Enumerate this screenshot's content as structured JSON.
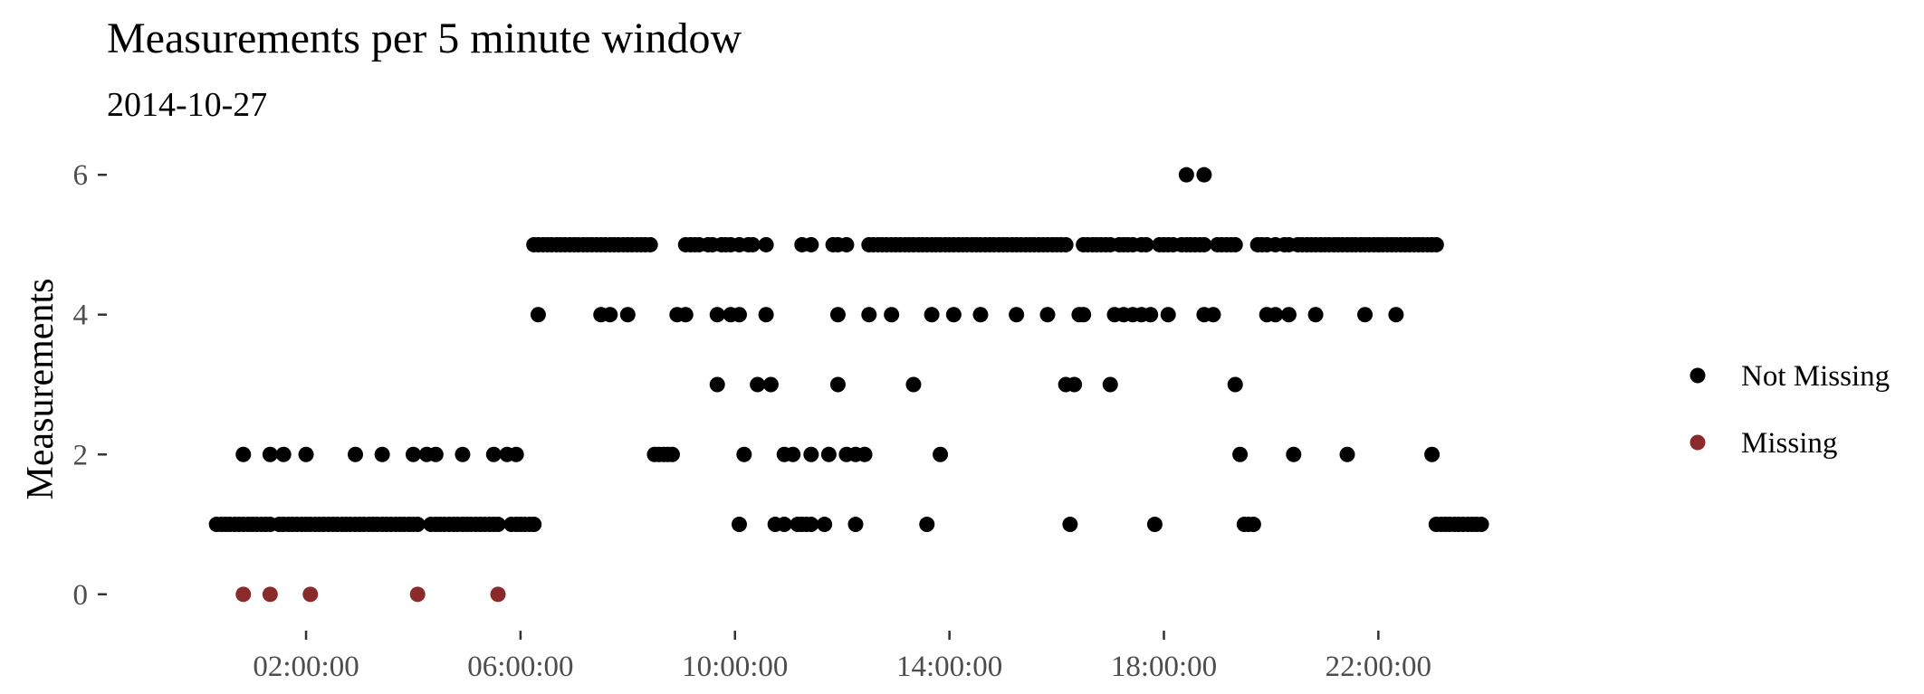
{
  "chart_data": {
    "type": "scatter",
    "title": "Measurements per 5 minute window",
    "subtitle": "2014-10-27",
    "xlabel": "",
    "ylabel": "Measurements",
    "x_unit": "hours",
    "xlim": [
      -0.5,
      25.0
    ],
    "ylim": [
      -0.3,
      6.3
    ],
    "x_ticks": [
      2,
      6,
      10,
      14,
      18,
      22
    ],
    "x_tick_labels": [
      "02:00:00",
      "06:00:00",
      "10:00:00",
      "14:00:00",
      "18:00:00",
      "22:00:00"
    ],
    "y_ticks": [
      0,
      2,
      4,
      6
    ],
    "y_tick_labels": [
      "0",
      "2",
      "4",
      "6"
    ],
    "grid": false,
    "legend_position": "right",
    "series": [
      {
        "name": "Not Missing",
        "color": "#000000",
        "points": [
          [
            0.33,
            1
          ],
          [
            0.42,
            1
          ],
          [
            0.5,
            1
          ],
          [
            0.58,
            1
          ],
          [
            0.67,
            1
          ],
          [
            0.75,
            1
          ],
          [
            0.83,
            1
          ],
          [
            0.92,
            1
          ],
          [
            1.0,
            1
          ],
          [
            1.08,
            1
          ],
          [
            1.17,
            1
          ],
          [
            1.25,
            1
          ],
          [
            1.33,
            1
          ],
          [
            1.5,
            1
          ],
          [
            1.58,
            1
          ],
          [
            1.67,
            1
          ],
          [
            1.75,
            1
          ],
          [
            1.83,
            1
          ],
          [
            1.92,
            1
          ],
          [
            2.0,
            1
          ],
          [
            2.08,
            1
          ],
          [
            2.17,
            1
          ],
          [
            2.25,
            1
          ],
          [
            2.33,
            1
          ],
          [
            2.42,
            1
          ],
          [
            2.5,
            1
          ],
          [
            2.58,
            1
          ],
          [
            2.67,
            1
          ],
          [
            2.75,
            1
          ],
          [
            2.83,
            1
          ],
          [
            2.92,
            1
          ],
          [
            3.0,
            1
          ],
          [
            3.08,
            1
          ],
          [
            3.17,
            1
          ],
          [
            3.25,
            1
          ],
          [
            3.33,
            1
          ],
          [
            3.42,
            1
          ],
          [
            3.5,
            1
          ],
          [
            3.58,
            1
          ],
          [
            3.67,
            1
          ],
          [
            3.75,
            1
          ],
          [
            3.83,
            1
          ],
          [
            3.92,
            1
          ],
          [
            4.0,
            1
          ],
          [
            4.08,
            1
          ],
          [
            4.33,
            1
          ],
          [
            4.42,
            1
          ],
          [
            4.5,
            1
          ],
          [
            4.58,
            1
          ],
          [
            4.67,
            1
          ],
          [
            4.75,
            1
          ],
          [
            4.83,
            1
          ],
          [
            4.92,
            1
          ],
          [
            5.0,
            1
          ],
          [
            5.08,
            1
          ],
          [
            5.17,
            1
          ],
          [
            5.25,
            1
          ],
          [
            5.33,
            1
          ],
          [
            5.42,
            1
          ],
          [
            5.5,
            1
          ],
          [
            5.58,
            1
          ],
          [
            5.83,
            1
          ],
          [
            5.92,
            1
          ],
          [
            6.0,
            1
          ],
          [
            6.08,
            1
          ],
          [
            6.17,
            1
          ],
          [
            6.25,
            1
          ],
          [
            0.83,
            2
          ],
          [
            1.33,
            2
          ],
          [
            1.58,
            2
          ],
          [
            2.0,
            2
          ],
          [
            2.92,
            2
          ],
          [
            3.42,
            2
          ],
          [
            4.0,
            2
          ],
          [
            4.25,
            2
          ],
          [
            4.42,
            2
          ],
          [
            4.92,
            2
          ],
          [
            5.5,
            2
          ],
          [
            5.75,
            2
          ],
          [
            5.92,
            2
          ],
          [
            6.25,
            5
          ],
          [
            6.33,
            5
          ],
          [
            6.42,
            5
          ],
          [
            6.5,
            5
          ],
          [
            6.58,
            5
          ],
          [
            6.67,
            5
          ],
          [
            6.75,
            5
          ],
          [
            6.83,
            5
          ],
          [
            6.92,
            5
          ],
          [
            7.0,
            5
          ],
          [
            7.08,
            5
          ],
          [
            7.17,
            5
          ],
          [
            7.25,
            5
          ],
          [
            7.33,
            5
          ],
          [
            7.42,
            5
          ],
          [
            7.5,
            5
          ],
          [
            7.58,
            5
          ],
          [
            7.67,
            5
          ],
          [
            7.75,
            5
          ],
          [
            7.83,
            5
          ],
          [
            7.92,
            5
          ],
          [
            8.0,
            5
          ],
          [
            8.08,
            5
          ],
          [
            8.17,
            5
          ],
          [
            8.25,
            5
          ],
          [
            8.33,
            5
          ],
          [
            8.42,
            5
          ],
          [
            9.08,
            5
          ],
          [
            9.17,
            5
          ],
          [
            9.25,
            5
          ],
          [
            9.33,
            5
          ],
          [
            9.5,
            5
          ],
          [
            9.58,
            5
          ],
          [
            9.75,
            5
          ],
          [
            9.83,
            5
          ],
          [
            9.92,
            5
          ],
          [
            10.08,
            5
          ],
          [
            10.25,
            5
          ],
          [
            10.33,
            5
          ],
          [
            10.58,
            5
          ],
          [
            11.25,
            5
          ],
          [
            11.42,
            5
          ],
          [
            11.83,
            5
          ],
          [
            11.92,
            5
          ],
          [
            12.08,
            5
          ],
          [
            12.5,
            5
          ],
          [
            12.58,
            5
          ],
          [
            12.67,
            5
          ],
          [
            12.75,
            5
          ],
          [
            12.83,
            5
          ],
          [
            12.92,
            5
          ],
          [
            13.0,
            5
          ],
          [
            13.08,
            5
          ],
          [
            13.17,
            5
          ],
          [
            13.25,
            5
          ],
          [
            13.33,
            5
          ],
          [
            13.42,
            5
          ],
          [
            13.5,
            5
          ],
          [
            13.58,
            5
          ],
          [
            13.67,
            5
          ],
          [
            13.75,
            5
          ],
          [
            13.83,
            5
          ],
          [
            13.92,
            5
          ],
          [
            14.0,
            5
          ],
          [
            14.08,
            5
          ],
          [
            14.17,
            5
          ],
          [
            14.25,
            5
          ],
          [
            14.33,
            5
          ],
          [
            14.42,
            5
          ],
          [
            14.5,
            5
          ],
          [
            14.58,
            5
          ],
          [
            14.67,
            5
          ],
          [
            14.75,
            5
          ],
          [
            14.83,
            5
          ],
          [
            14.92,
            5
          ],
          [
            15.0,
            5
          ],
          [
            15.08,
            5
          ],
          [
            15.17,
            5
          ],
          [
            15.25,
            5
          ],
          [
            15.33,
            5
          ],
          [
            15.42,
            5
          ],
          [
            15.5,
            5
          ],
          [
            15.58,
            5
          ],
          [
            15.67,
            5
          ],
          [
            15.75,
            5
          ],
          [
            15.83,
            5
          ],
          [
            15.92,
            5
          ],
          [
            16.0,
            5
          ],
          [
            16.08,
            5
          ],
          [
            16.17,
            5
          ],
          [
            16.5,
            5
          ],
          [
            16.58,
            5
          ],
          [
            16.67,
            5
          ],
          [
            16.75,
            5
          ],
          [
            16.83,
            5
          ],
          [
            16.92,
            5
          ],
          [
            17.0,
            5
          ],
          [
            17.17,
            5
          ],
          [
            17.25,
            5
          ],
          [
            17.33,
            5
          ],
          [
            17.42,
            5
          ],
          [
            17.58,
            5
          ],
          [
            17.67,
            5
          ],
          [
            17.92,
            5
          ],
          [
            18.0,
            5
          ],
          [
            18.08,
            5
          ],
          [
            18.17,
            5
          ],
          [
            18.33,
            5
          ],
          [
            18.42,
            5
          ],
          [
            18.5,
            5
          ],
          [
            18.58,
            5
          ],
          [
            18.67,
            5
          ],
          [
            18.75,
            5
          ],
          [
            19.0,
            5
          ],
          [
            19.08,
            5
          ],
          [
            19.17,
            5
          ],
          [
            19.25,
            5
          ],
          [
            19.33,
            5
          ],
          [
            19.75,
            5
          ],
          [
            19.83,
            5
          ],
          [
            19.92,
            5
          ],
          [
            20.08,
            5
          ],
          [
            20.25,
            5
          ],
          [
            20.33,
            5
          ],
          [
            20.5,
            5
          ],
          [
            20.58,
            5
          ],
          [
            20.67,
            5
          ],
          [
            20.75,
            5
          ],
          [
            20.83,
            5
          ],
          [
            20.92,
            5
          ],
          [
            21.0,
            5
          ],
          [
            21.08,
            5
          ],
          [
            21.17,
            5
          ],
          [
            21.25,
            5
          ],
          [
            21.33,
            5
          ],
          [
            21.42,
            5
          ],
          [
            21.5,
            5
          ],
          [
            21.58,
            5
          ],
          [
            21.67,
            5
          ],
          [
            21.75,
            5
          ],
          [
            21.83,
            5
          ],
          [
            21.92,
            5
          ],
          [
            22.0,
            5
          ],
          [
            22.08,
            5
          ],
          [
            22.17,
            5
          ],
          [
            22.25,
            5
          ],
          [
            22.33,
            5
          ],
          [
            22.42,
            5
          ],
          [
            22.5,
            5
          ],
          [
            22.58,
            5
          ],
          [
            22.67,
            5
          ],
          [
            22.75,
            5
          ],
          [
            22.83,
            5
          ],
          [
            22.92,
            5
          ],
          [
            23.0,
            5
          ],
          [
            23.08,
            5
          ],
          [
            6.33,
            4
          ],
          [
            7.5,
            4
          ],
          [
            7.67,
            4
          ],
          [
            8.0,
            4
          ],
          [
            8.92,
            4
          ],
          [
            9.08,
            4
          ],
          [
            9.67,
            4
          ],
          [
            9.92,
            4
          ],
          [
            10.08,
            4
          ],
          [
            10.58,
            4
          ],
          [
            11.92,
            4
          ],
          [
            12.5,
            4
          ],
          [
            12.92,
            4
          ],
          [
            13.67,
            4
          ],
          [
            14.08,
            4
          ],
          [
            14.58,
            4
          ],
          [
            15.25,
            4
          ],
          [
            15.83,
            4
          ],
          [
            16.42,
            4
          ],
          [
            16.5,
            4
          ],
          [
            17.08,
            4
          ],
          [
            17.25,
            4
          ],
          [
            17.42,
            4
          ],
          [
            17.58,
            4
          ],
          [
            17.75,
            4
          ],
          [
            18.08,
            4
          ],
          [
            18.75,
            4
          ],
          [
            18.92,
            4
          ],
          [
            19.92,
            4
          ],
          [
            20.08,
            4
          ],
          [
            20.33,
            4
          ],
          [
            20.83,
            4
          ],
          [
            21.75,
            4
          ],
          [
            22.33,
            4
          ],
          [
            9.67,
            3
          ],
          [
            10.42,
            3
          ],
          [
            10.67,
            3
          ],
          [
            11.92,
            3
          ],
          [
            13.33,
            3
          ],
          [
            16.17,
            3
          ],
          [
            16.33,
            3
          ],
          [
            17.0,
            3
          ],
          [
            19.33,
            3
          ],
          [
            8.5,
            2
          ],
          [
            8.58,
            2
          ],
          [
            8.67,
            2
          ],
          [
            8.75,
            2
          ],
          [
            8.83,
            2
          ],
          [
            10.17,
            2
          ],
          [
            10.92,
            2
          ],
          [
            11.08,
            2
          ],
          [
            11.42,
            2
          ],
          [
            11.75,
            2
          ],
          [
            12.08,
            2
          ],
          [
            12.25,
            2
          ],
          [
            12.42,
            2
          ],
          [
            13.83,
            2
          ],
          [
            19.42,
            2
          ],
          [
            20.42,
            2
          ],
          [
            21.42,
            2
          ],
          [
            23.0,
            2
          ],
          [
            10.08,
            1
          ],
          [
            10.75,
            1
          ],
          [
            10.92,
            1
          ],
          [
            11.17,
            1
          ],
          [
            11.25,
            1
          ],
          [
            11.33,
            1
          ],
          [
            11.42,
            1
          ],
          [
            11.67,
            1
          ],
          [
            12.25,
            1
          ],
          [
            13.58,
            1
          ],
          [
            16.25,
            1
          ],
          [
            17.83,
            1
          ],
          [
            19.5,
            1
          ],
          [
            19.58,
            1
          ],
          [
            19.67,
            1
          ],
          [
            23.08,
            1
          ],
          [
            23.17,
            1
          ],
          [
            23.25,
            1
          ],
          [
            23.33,
            1
          ],
          [
            23.42,
            1
          ],
          [
            23.5,
            1
          ],
          [
            23.58,
            1
          ],
          [
            23.67,
            1
          ],
          [
            23.75,
            1
          ],
          [
            23.83,
            1
          ],
          [
            23.92,
            1
          ],
          [
            18.42,
            6
          ],
          [
            18.75,
            6
          ]
        ]
      },
      {
        "name": "Missing",
        "color": "#8b2a2a",
        "points": [
          [
            0.83,
            0
          ],
          [
            1.33,
            0
          ],
          [
            2.08,
            0
          ],
          [
            4.08,
            0
          ],
          [
            5.58,
            0
          ]
        ]
      }
    ]
  }
}
